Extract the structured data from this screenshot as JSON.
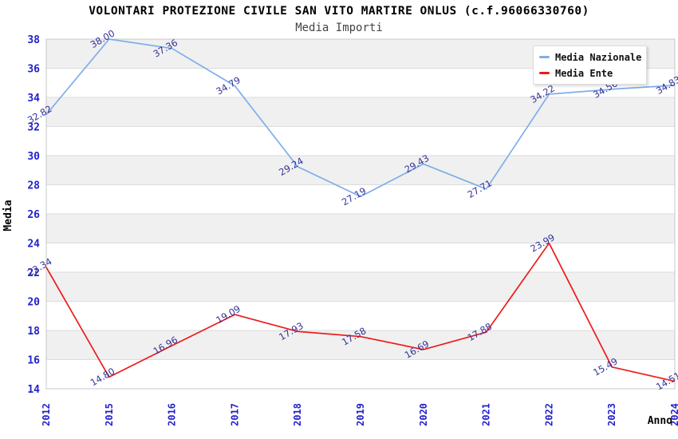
{
  "chart_data": {
    "type": "line",
    "title": "VOLONTARI PROTEZIONE CIVILE SAN VITO MARTIRE ONLUS (c.f.96066330760)",
    "subtitle": "Media Importi",
    "xlabel": "Anno",
    "ylabel": "Media",
    "categories": [
      "2012",
      "2015",
      "2016",
      "2017",
      "2018",
      "2019",
      "2020",
      "2021",
      "2022",
      "2023",
      "2024"
    ],
    "series": [
      {
        "name": "Media Nazionale",
        "color": "#7daee8",
        "values": [
          32.82,
          38.0,
          37.36,
          34.79,
          29.24,
          27.19,
          29.43,
          27.71,
          34.22,
          34.56,
          34.83
        ]
      },
      {
        "name": "Media Ente",
        "color": "#ee1a1a",
        "values": [
          22.34,
          14.8,
          16.96,
          19.09,
          17.93,
          17.58,
          16.69,
          17.88,
          23.99,
          15.49,
          14.51
        ]
      }
    ],
    "ylim": [
      14,
      38
    ],
    "ytick_step": 2,
    "grid": "horizontal-bands",
    "legend_position": "top-right",
    "colors": {
      "tick_label": "#2222cc",
      "data_label": "#333399",
      "band": "#f0f0f0",
      "gridline": "#dcdcdc",
      "plot_border": "#c8c8c8"
    }
  }
}
